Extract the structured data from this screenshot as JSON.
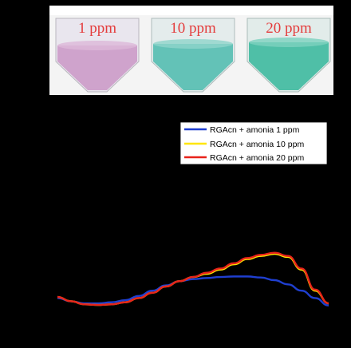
{
  "photo": {
    "vials": [
      {
        "label": "1 ppm",
        "liquid_color": "#cfa3cc"
      },
      {
        "label": "10 ppm",
        "liquid_color": "#63c2b7"
      },
      {
        "label": "20 ppm",
        "liquid_color": "#4fbfa7"
      }
    ],
    "label_color": "#e43b3b"
  },
  "chart_data": {
    "type": "line",
    "title": "",
    "xlabel": "",
    "ylabel": "",
    "xlim": [
      0,
      100
    ],
    "ylim": [
      0,
      100
    ],
    "grid": false,
    "legend_position": "top-right",
    "x": [
      0,
      5,
      10,
      15,
      20,
      25,
      30,
      35,
      40,
      45,
      50,
      55,
      60,
      65,
      70,
      75,
      80,
      85,
      90,
      95,
      100
    ],
    "series": [
      {
        "name": "RGAcn + amonia 1 ppm",
        "color": "#1f3fd0",
        "values": [
          8,
          5,
          3,
          3,
          4,
          6,
          10,
          15,
          20,
          24,
          26,
          27,
          28,
          28.5,
          28.5,
          27.5,
          25,
          21,
          15,
          8,
          1
        ]
      },
      {
        "name": "RGAcn + amonia 10 ppm",
        "color": "#ffe600",
        "values": [
          9,
          5,
          2,
          1.5,
          2,
          4,
          8,
          13,
          19,
          24,
          28,
          31,
          35,
          40,
          45,
          48,
          50,
          47,
          35,
          15,
          3
        ]
      },
      {
        "name": "RGAcn + amonia 20 ppm",
        "color": "#e8231a",
        "values": [
          9,
          5,
          2,
          1.5,
          2,
          4,
          8,
          13,
          19,
          24,
          28,
          32,
          36,
          41,
          46,
          49,
          51,
          48,
          36,
          16,
          3
        ]
      }
    ]
  }
}
